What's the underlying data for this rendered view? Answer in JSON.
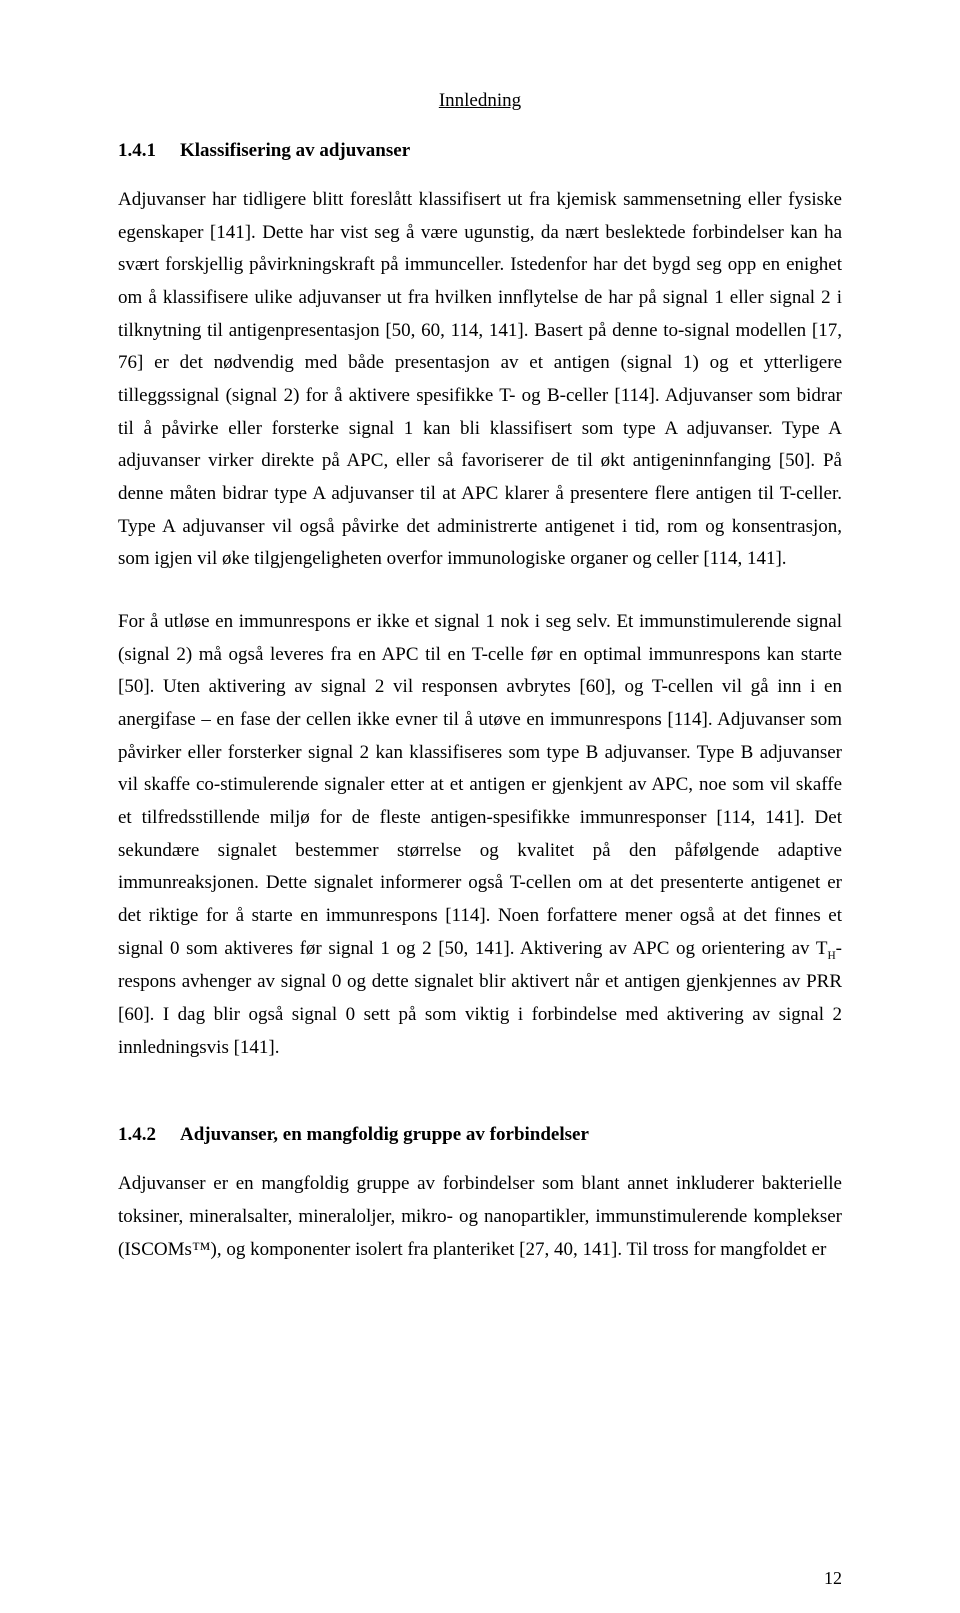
{
  "running_head": "Innledning",
  "section1": {
    "number": "1.4.1",
    "title": "Klassifisering av adjuvanser",
    "p1": "Adjuvanser har tidligere blitt foreslått klassifisert ut fra kjemisk sammensetning eller fysiske egenskaper [141]. Dette har vist seg å være ugunstig, da nært beslektede forbindelser kan ha svært forskjellig påvirkningskraft på immunceller. Istedenfor har det bygd seg opp en enighet om å klassifisere ulike adjuvanser ut fra hvilken innflytelse de har på signal 1 eller signal 2 i tilknytning til antigenpresentasjon [50, 60, 114, 141]. Basert på denne to-signal modellen [17, 76] er det nødvendig med både presentasjon av et antigen (signal 1) og et ytterligere tilleggssignal (signal 2) for å aktivere spesifikke T- og B-celler [114]. Adjuvanser som bidrar til å påvirke eller forsterke signal 1 kan bli klassifisert som type A adjuvanser. Type A adjuvanser virker direkte på APC, eller så favoriserer de til økt antigeninnfanging [50]. På denne måten bidrar type A adjuvanser til at APC klarer å presentere flere antigen til T-celler. Type A adjuvanser vil også påvirke det administrerte antigenet i tid, rom og konsentrasjon, som igjen vil øke tilgjengeligheten overfor immunologiske organer og celler [114, 141].",
    "p2_before": "For å utløse en immunrespons er ikke et signal 1 nok i seg selv. Et immunstimulerende signal (signal 2) må også leveres fra en APC til en T-celle før en optimal immunrespons kan starte [50]. Uten aktivering av signal 2 vil responsen avbrytes [60], og T-cellen vil gå inn i en anergifase – en fase der cellen ikke evner til å utøve en immunrespons [114]. Adjuvanser som påvirker eller forsterker signal 2 kan klassifiseres som type B adjuvanser. Type B adjuvanser vil skaffe co-stimulerende signaler etter at et antigen er gjenkjent av APC, noe som vil skaffe et tilfredsstillende miljø for de fleste antigen-spesifikke immunresponser [114, 141]. Det sekundære signalet bestemmer størrelse og kvalitet på den påfølgende adaptive immunreaksjonen. Dette signalet informerer også T-cellen om at det presenterte antigenet er det riktige for å starte en immunrespons [114]. Noen forfattere mener også at det finnes et signal 0 som aktiveres før signal 1 og 2 [50, 141]. Aktivering av APC og orientering av T",
    "p2_sub": "H",
    "p2_after": "-respons avhenger av signal 0 og dette signalet blir aktivert når et antigen gjenkjennes av PRR [60]. I dag blir også signal 0 sett på som viktig i forbindelse med aktivering av signal 2 innledningsvis [141]."
  },
  "section2": {
    "number": "1.4.2",
    "title": "Adjuvanser, en mangfoldig gruppe av forbindelser",
    "p1": "Adjuvanser er en mangfoldig gruppe av forbindelser som blant annet inkluderer bakterielle toksiner, mineralsalter, mineraloljer, mikro- og nanopartikler, immunstimulerende komplekser (ISCOMs™), og komponenter isolert fra planteriket [27, 40, 141]. Til tross for mangfoldet er"
  },
  "page_number": "12"
}
